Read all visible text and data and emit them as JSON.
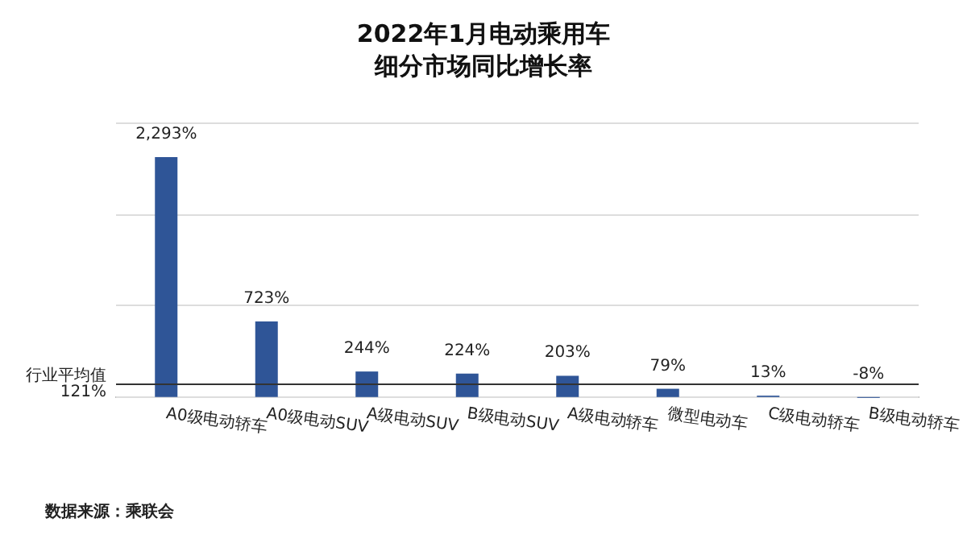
{
  "chart_data": {
    "type": "bar",
    "title": "2022年1月电动乘用车细分市场同比增长率",
    "categories": [
      "A0级电动轿车",
      "A0级电动SUV",
      "A级电动SUV",
      "B级电动SUV",
      "A级电动轿车",
      "微型电动车",
      "C级电动轿车",
      "B级电动轿车"
    ],
    "values": [
      2293,
      723,
      244,
      224,
      203,
      79,
      13,
      -8
    ],
    "value_labels": [
      "2,293%",
      "723%",
      "244%",
      "224%",
      "203%",
      "79%",
      "13%",
      "-8%"
    ],
    "color": "#2f5597",
    "ylim": [
      -40,
      2625
    ],
    "yticks": [
      {
        "value": 0,
        "label": null
      },
      {
        "value": 875,
        "label": null
      },
      {
        "value": 1750,
        "label": null
      },
      {
        "value": 2625,
        "label": null
      }
    ],
    "tick_labels": "x",
    "grid": "y",
    "ref_lines": [
      {
        "axis": "y",
        "value": 121,
        "label": "行业平均值\n121%",
        "color": "#333333"
      }
    ],
    "annotations": [
      "数据来源：乘联会"
    ]
  }
}
